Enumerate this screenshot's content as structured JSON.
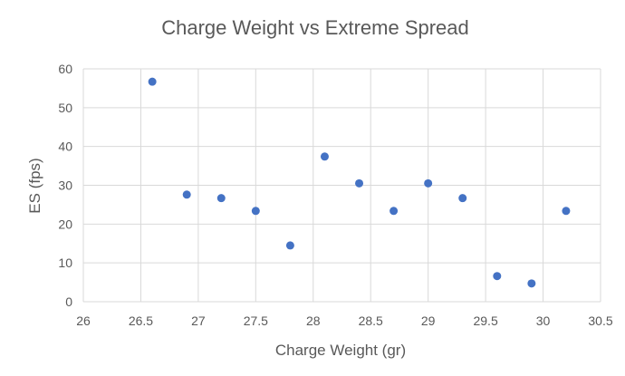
{
  "chart_data": {
    "type": "scatter",
    "title": "Charge Weight vs Extreme Spread",
    "xlabel": "Charge Weight (gr)",
    "ylabel": "ES (fps)",
    "xlim": [
      26,
      30.5
    ],
    "ylim": [
      0,
      60
    ],
    "xticks": [
      26,
      26.5,
      27,
      27.5,
      28,
      28.5,
      29,
      29.5,
      30,
      30.5
    ],
    "xtick_labels": [
      "26",
      "26.5",
      "27",
      "27.5",
      "28",
      "28.5",
      "29",
      "29.5",
      "30",
      "30.5"
    ],
    "yticks": [
      0,
      10,
      20,
      30,
      40,
      50,
      60
    ],
    "ytick_labels": [
      "0",
      "10",
      "20",
      "30",
      "40",
      "50",
      "60"
    ],
    "grid": true,
    "legend": "none",
    "series": [
      {
        "color": "#4472c4",
        "points": [
          {
            "x": 26.6,
            "y": 56.7
          },
          {
            "x": 26.9,
            "y": 27.6
          },
          {
            "x": 27.2,
            "y": 26.7
          },
          {
            "x": 27.5,
            "y": 23.4
          },
          {
            "x": 27.8,
            "y": 14.5
          },
          {
            "x": 28.1,
            "y": 37.4
          },
          {
            "x": 28.4,
            "y": 30.5
          },
          {
            "x": 28.7,
            "y": 23.4
          },
          {
            "x": 29.0,
            "y": 30.5
          },
          {
            "x": 29.3,
            "y": 26.7
          },
          {
            "x": 29.6,
            "y": 6.6
          },
          {
            "x": 29.9,
            "y": 4.7
          },
          {
            "x": 30.2,
            "y": 23.4
          }
        ]
      }
    ]
  }
}
